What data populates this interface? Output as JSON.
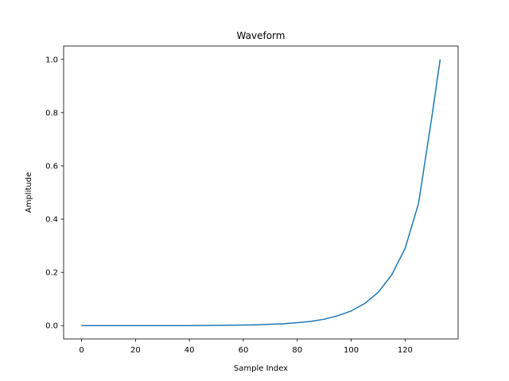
{
  "chart_data": {
    "type": "line",
    "title": "Waveform",
    "xlabel": "Sample Index",
    "ylabel": "Amplitude",
    "xlim": [
      -6.65,
      139.65
    ],
    "ylim": [
      -0.05,
      1.05
    ],
    "x_ticks": [
      0,
      20,
      40,
      60,
      80,
      100,
      120
    ],
    "y_ticks": [
      0.0,
      0.2,
      0.4,
      0.6,
      0.8,
      1.0
    ],
    "x_tick_labels": [
      "0",
      "20",
      "40",
      "60",
      "80",
      "100",
      "120"
    ],
    "y_tick_labels": [
      "0.0",
      "0.2",
      "0.4",
      "0.6",
      "0.8",
      "1.0"
    ],
    "grid": false,
    "series": [
      {
        "color": "#1f77b4",
        "x": [
          0,
          10,
          20,
          30,
          40,
          50,
          60,
          65,
          70,
          75,
          80,
          85,
          90,
          95,
          100,
          105,
          110,
          115,
          120,
          125,
          130,
          133
        ],
        "y": [
          0.0,
          0.0,
          0.0,
          0.0,
          0.0,
          0.001,
          0.002,
          0.003,
          0.005,
          0.007,
          0.011,
          0.016,
          0.024,
          0.037,
          0.055,
          0.083,
          0.125,
          0.19,
          0.29,
          0.46,
          0.79,
          1.0
        ]
      }
    ]
  }
}
